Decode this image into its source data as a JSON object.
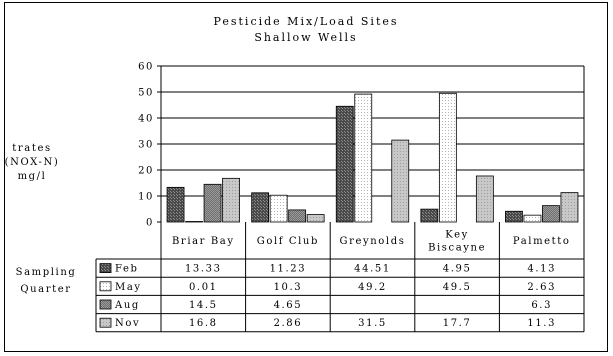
{
  "chart_data": {
    "type": "bar",
    "title": "Pesticide Mix/Load Sites",
    "subtitle": "Shallow Wells",
    "ylabel_lines": [
      "trates",
      "(NOX-N)",
      "mg/l"
    ],
    "ylim": [
      0,
      60
    ],
    "yticks": [
      "0",
      "10",
      "20",
      "30",
      "40",
      "50",
      "60"
    ],
    "grid": true,
    "categories": [
      [
        "Briar Bay"
      ],
      [
        "Golf Club"
      ],
      [
        "Greynolds"
      ],
      [
        "Key",
        "Biscayne"
      ],
      [
        "Palmetto"
      ]
    ],
    "legend_title_lines": [
      "Sampling",
      "Quarter"
    ],
    "series": [
      {
        "name": "Feb",
        "values": [
          13.33,
          11.23,
          44.51,
          4.95,
          4.13
        ],
        "labels": [
          "13.33",
          "11.23",
          "44.51",
          "4.95",
          "4.13"
        ]
      },
      {
        "name": "May",
        "values": [
          0.01,
          10.3,
          49.2,
          49.5,
          2.63
        ],
        "labels": [
          "0.01",
          "10.3",
          "49.2",
          "49.5",
          "2.63"
        ]
      },
      {
        "name": "Aug",
        "values": [
          14.5,
          4.65,
          null,
          null,
          6.3
        ],
        "labels": [
          "14.5",
          "4.65",
          "",
          "",
          "6.3"
        ]
      },
      {
        "name": "Nov",
        "values": [
          16.8,
          2.86,
          31.5,
          17.7,
          11.3
        ],
        "labels": [
          "16.8",
          "2.86",
          "31.5",
          "17.7",
          "11.3"
        ]
      }
    ]
  }
}
